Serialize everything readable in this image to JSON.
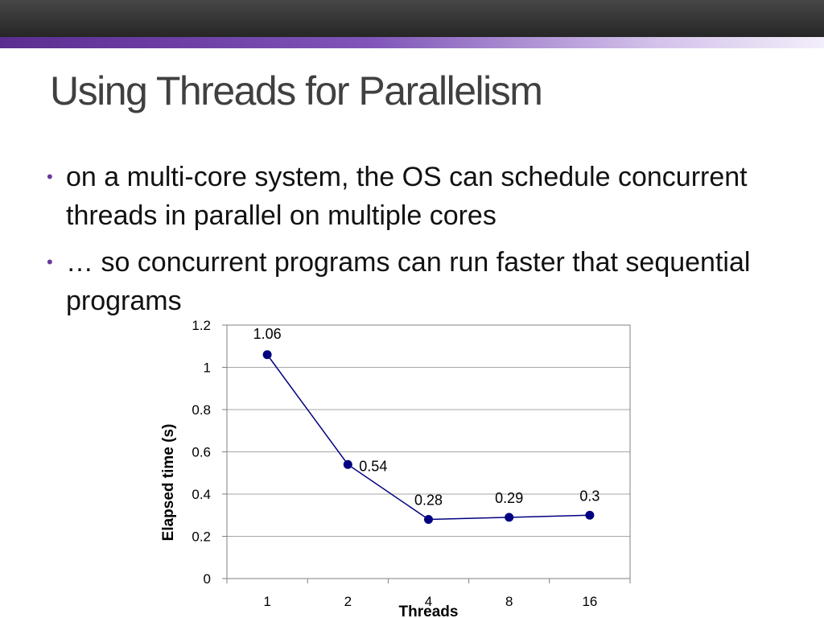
{
  "slide": {
    "title": "Using Threads for Parallelism",
    "bullets": [
      "on a multi-core system, the OS can schedule concurrent threads in parallel on multiple cores",
      "… so concurrent programs can run faster that sequential programs"
    ]
  },
  "chart_data": {
    "type": "line",
    "categories": [
      "1",
      "2",
      "4",
      "8",
      "16"
    ],
    "values": [
      1.06,
      0.54,
      0.28,
      0.29,
      0.3
    ],
    "data_labels": [
      "1.06",
      "0.54",
      "0.28",
      "0.29",
      "0.3"
    ],
    "xlabel": "Threads",
    "ylabel": "Elapsed time (s)",
    "ylim": [
      0,
      1.2
    ],
    "yticks": [
      "0",
      "0.2",
      "0.4",
      "0.6",
      "0.8",
      "1",
      "1.2"
    ],
    "grid": true,
    "legend": "none",
    "colors": {
      "series": "#000080",
      "grid": "#a6a6a6",
      "axis": "#808080"
    }
  }
}
